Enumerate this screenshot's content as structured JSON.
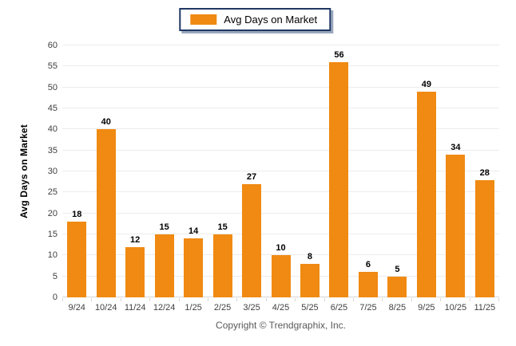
{
  "legend": {
    "label": "Avg Days on Market",
    "swatch_color": "#F08A12"
  },
  "y_axis": {
    "title": "Avg Days on Market"
  },
  "footer": {
    "copyright": "Copyright © Trendgraphix, Inc."
  },
  "chart_data": {
    "type": "bar",
    "categories": [
      "9/24",
      "10/24",
      "11/24",
      "12/24",
      "1/25",
      "2/25",
      "3/25",
      "4/25",
      "5/25",
      "6/25",
      "7/25",
      "8/25",
      "9/25",
      "10/25",
      "11/25"
    ],
    "values": [
      18,
      40,
      12,
      15,
      14,
      15,
      27,
      10,
      8,
      56,
      6,
      5,
      49,
      34,
      28
    ],
    "title": "",
    "xlabel": "",
    "ylabel": "Avg Days on Market",
    "ylim": [
      0,
      60
    ],
    "ytick_step": 5,
    "bar_color": "#F08A12",
    "grid": true,
    "gridline_color": "#ECECEC",
    "axis_line_color": "#D6D6D6",
    "tick_label_color": "#404040",
    "legend_position": "top-center"
  }
}
